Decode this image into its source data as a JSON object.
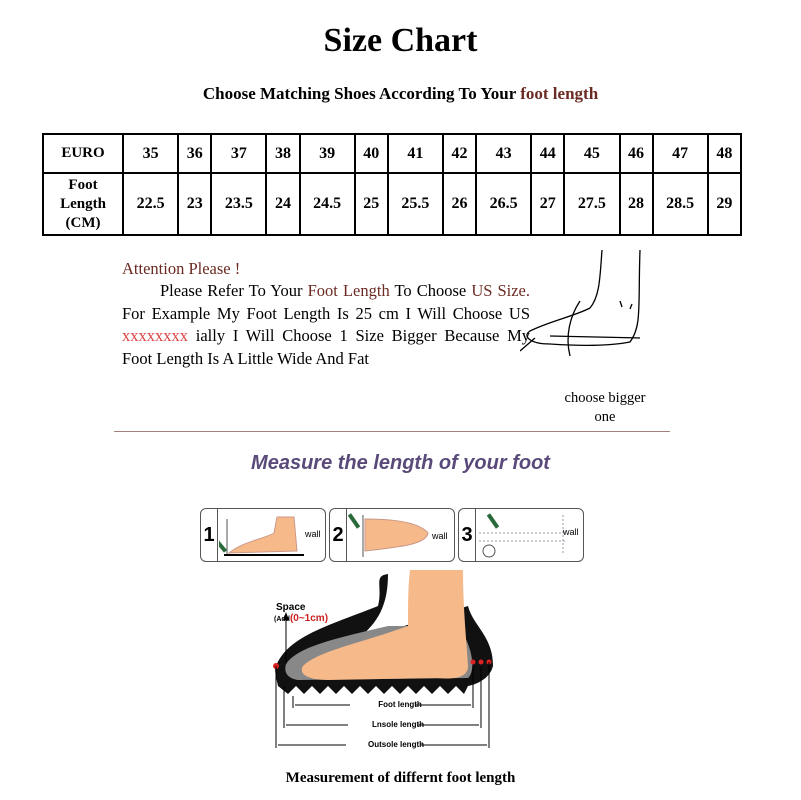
{
  "title": "Size Chart",
  "subtitle": {
    "prefix": "Choose Matching Shoes According To Your ",
    "highlight": "foot length"
  },
  "table": {
    "euro_label": "EURO",
    "foot_label": "Foot Length (CM)",
    "euro": [
      "35",
      "36",
      "37",
      "38",
      "39",
      "40",
      "41",
      "42",
      "43",
      "44",
      "45",
      "46",
      "47",
      "48"
    ],
    "cm": [
      "22.5",
      "23",
      "23.5",
      "24",
      "24.5",
      "25",
      "25.5",
      "26",
      "26.5",
      "27",
      "27.5",
      "28",
      "28.5",
      "29"
    ]
  },
  "attention": {
    "heading": "Attention Please !",
    "p1": "Please Refer To Your ",
    "foot_length": "Foot Length",
    "p2": " To Choose ",
    "us_size": "US Size.",
    "p3": " For Example My Foot Length Is 25 cm I Will Choose US ",
    "redacted": "xxxxxxxx",
    "p4": " ially I Will Choose 1 Size Bigger Because My Foot Length Is A Little Wide And Fat"
  },
  "choose_bigger": "choose bigger one",
  "measure_heading": "Measure the length of your foot",
  "steps": [
    {
      "num": "1",
      "wall": "wall"
    },
    {
      "num": "2",
      "wall": "wall"
    },
    {
      "num": "3",
      "wall": "wall"
    }
  ],
  "diagram": {
    "space": "Space",
    "add_prefix": "(Add",
    "add_value": "(0~1cm)",
    "foot_length": "Foot length",
    "insole_length": "Lnsole length",
    "outsole_length": "Outsole length"
  },
  "caption": "Measurement of differnt foot length",
  "colors": {
    "accent_red": "#6b2a22",
    "heading_purple": "#5a4a7a",
    "skin": "#f6b98a"
  }
}
